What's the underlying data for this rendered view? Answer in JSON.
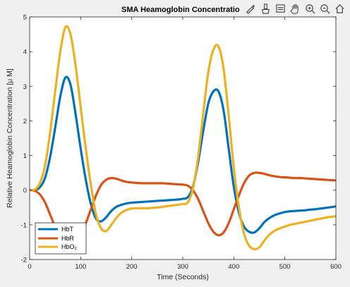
{
  "colors": {
    "figure_bg": "#f0f0f0",
    "axes_bg": "#ffffff",
    "HbT": "#0072BD",
    "HbR": "#D95319",
    "HbO2": "#EDB120"
  },
  "toolbar": {
    "icons": [
      "edit-plot-icon",
      "brush-icon",
      "data-tips-icon",
      "pan-icon",
      "zoom-in-icon",
      "zoom-out-icon",
      "home-icon"
    ]
  },
  "chart_data": {
    "type": "line",
    "title": "SMA Heamoglobin Concentratio",
    "xlabel": "Time (Seconds)",
    "ylabel": "Relative Heamoglobin Concentration [μ M]",
    "xlim": [
      0,
      600
    ],
    "ylim": [
      -2,
      5
    ],
    "xticks": [
      "0",
      "100",
      "200",
      "300",
      "400",
      "500",
      "600"
    ],
    "yticks": [
      "-2",
      "-1",
      "0",
      "1",
      "2",
      "3",
      "4",
      "5"
    ],
    "grid": false,
    "legend_location": "bottom-left",
    "x": [
      0,
      10,
      20,
      30,
      40,
      50,
      60,
      70,
      80,
      90,
      100,
      110,
      120,
      130,
      140,
      150,
      160,
      170,
      180,
      190,
      200,
      210,
      220,
      230,
      240,
      250,
      260,
      270,
      280,
      290,
      300,
      310,
      320,
      330,
      340,
      350,
      360,
      370,
      380,
      390,
      400,
      410,
      420,
      430,
      440,
      450,
      460,
      470,
      480,
      490,
      500,
      510,
      520,
      530,
      540,
      550,
      560,
      570,
      580,
      590,
      600
    ],
    "series": [
      {
        "name": "HbT",
        "values": [
          0,
          0.0,
          0.08,
          0.35,
          0.95,
          1.8,
          2.7,
          3.25,
          3.05,
          2.2,
          1.2,
          0.3,
          -0.4,
          -0.82,
          -0.9,
          -0.78,
          -0.6,
          -0.48,
          -0.42,
          -0.38,
          -0.36,
          -0.35,
          -0.34,
          -0.33,
          -0.32,
          -0.31,
          -0.3,
          -0.29,
          -0.28,
          -0.27,
          -0.25,
          -0.2,
          0.1,
          0.8,
          1.7,
          2.5,
          2.85,
          2.85,
          2.3,
          1.2,
          0.1,
          -0.65,
          -1.05,
          -1.2,
          -1.22,
          -1.1,
          -0.92,
          -0.8,
          -0.72,
          -0.67,
          -0.63,
          -0.61,
          -0.6,
          -0.59,
          -0.58,
          -0.56,
          -0.55,
          -0.53,
          -0.51,
          -0.49,
          -0.47
        ]
      },
      {
        "name": "HbR",
        "values": [
          0,
          -0.02,
          -0.12,
          -0.35,
          -0.7,
          -1.05,
          -1.3,
          -1.4,
          -1.42,
          -1.4,
          -1.25,
          -0.95,
          -0.55,
          -0.15,
          0.15,
          0.3,
          0.35,
          0.33,
          0.28,
          0.24,
          0.22,
          0.21,
          0.2,
          0.2,
          0.2,
          0.2,
          0.2,
          0.19,
          0.18,
          0.17,
          0.16,
          0.13,
          0.0,
          -0.25,
          -0.6,
          -0.95,
          -1.2,
          -1.3,
          -1.22,
          -0.95,
          -0.55,
          -0.15,
          0.2,
          0.42,
          0.5,
          0.5,
          0.47,
          0.43,
          0.4,
          0.38,
          0.37,
          0.36,
          0.35,
          0.35,
          0.34,
          0.33,
          0.32,
          0.31,
          0.3,
          0.29,
          0.28
        ]
      },
      {
        "name": "HbO₂",
        "values": [
          0,
          0.02,
          0.2,
          0.7,
          1.65,
          2.85,
          4.0,
          4.7,
          4.5,
          3.6,
          2.4,
          1.2,
          0.15,
          -0.7,
          -1.1,
          -1.18,
          -1.0,
          -0.8,
          -0.65,
          -0.57,
          -0.53,
          -0.52,
          -0.52,
          -0.52,
          -0.51,
          -0.5,
          -0.48,
          -0.46,
          -0.44,
          -0.42,
          -0.4,
          -0.35,
          0.05,
          0.95,
          2.2,
          3.4,
          4.05,
          4.15,
          3.5,
          2.15,
          0.65,
          -0.5,
          -1.25,
          -1.6,
          -1.7,
          -1.65,
          -1.45,
          -1.28,
          -1.17,
          -1.1,
          -1.05,
          -1.0,
          -0.97,
          -0.94,
          -0.91,
          -0.88,
          -0.85,
          -0.82,
          -0.79,
          -0.77,
          -0.75
        ]
      }
    ]
  }
}
